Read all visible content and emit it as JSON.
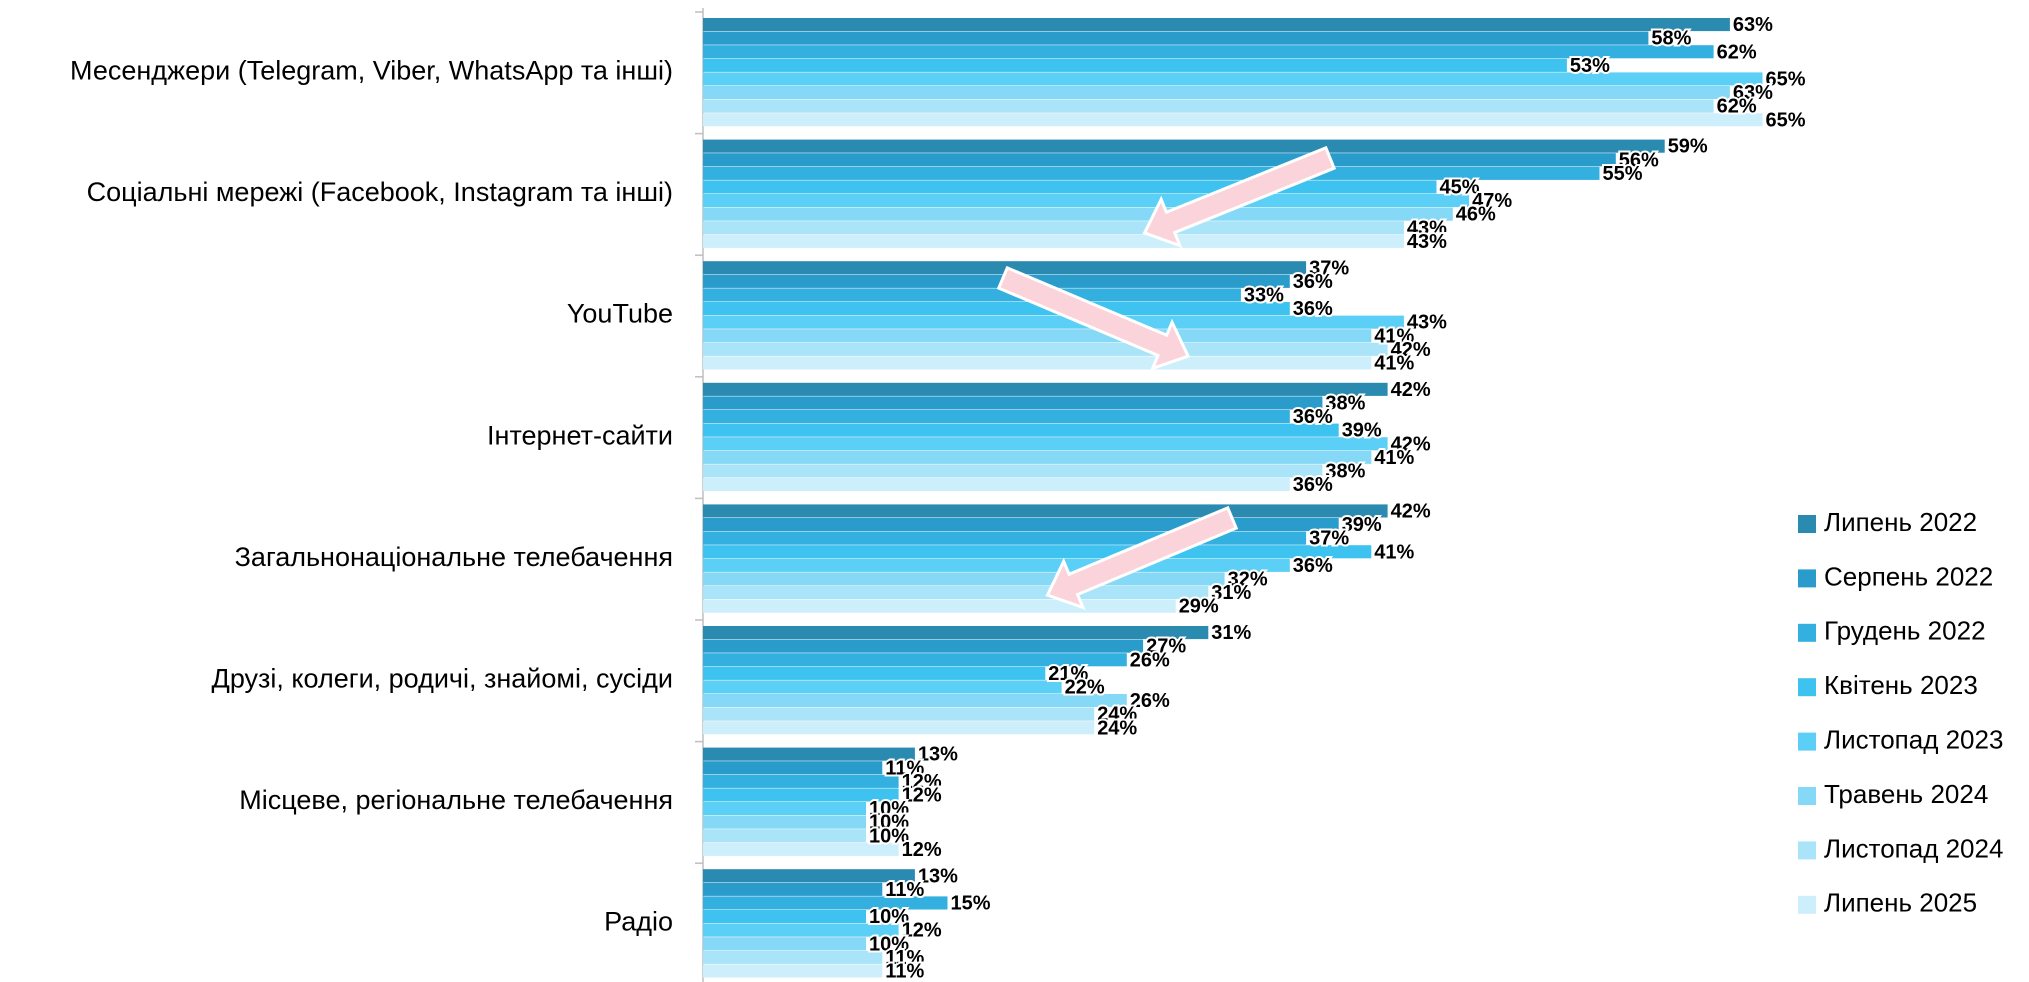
{
  "chart_data": {
    "type": "bar",
    "orientation": "horizontal",
    "categories": [
      "Месенджери (Telegram, Viber, WhatsApp та інші)",
      "Соціальні мережі (Facebook, Instagram та інші)",
      "YouTube",
      "Інтернет-сайти",
      "Загальнонаціональне телебачення",
      "Друзі, колеги, родичі, знайомі, сусіди",
      "Місцеве, регіональне телебачення",
      "Радіо"
    ],
    "xlim": [
      0,
      80
    ],
    "series": [
      {
        "name": "Липень 2022",
        "color": "#2b8ab0",
        "values": [
          63,
          59,
          37,
          42,
          42,
          31,
          13,
          13
        ],
        "value_labels": [
          "63%",
          "59%",
          "37%",
          "42%",
          "42%",
          "31%",
          "13%",
          "13%"
        ]
      },
      {
        "name": "Серпень 2022",
        "color": "#2a9ccc",
        "values": [
          58,
          56,
          36,
          38,
          39,
          27,
          11,
          11
        ],
        "value_labels": [
          "58%",
          "56%",
          "36%",
          "38%",
          "39%",
          "27%",
          "11%",
          "11%"
        ]
      },
      {
        "name": "Грудень 2022",
        "color": "#33afe0",
        "values": [
          62,
          55,
          33,
          36,
          37,
          26,
          12,
          15
        ],
        "value_labels": [
          "62%",
          "55%",
          "33%",
          "36%",
          "37%",
          "26%",
          "12%",
          "15%"
        ]
      },
      {
        "name": "Квітень 2023",
        "color": "#3ec3f0",
        "values": [
          53,
          45,
          36,
          39,
          41,
          21,
          12,
          10
        ],
        "value_labels": [
          "53%",
          "45%",
          "36%",
          "39%",
          "41%",
          "21%",
          "12%",
          "10%"
        ]
      },
      {
        "name": "Листопад 2023",
        "color": "#5bcff5",
        "values": [
          65,
          47,
          43,
          42,
          36,
          22,
          10,
          12
        ],
        "value_labels": [
          "65%",
          "47%",
          "43%",
          "42%",
          "36%",
          "22%",
          "10%",
          "12%"
        ]
      },
      {
        "name": "Травень 2024",
        "color": "#86d9f6",
        "values": [
          63,
          46,
          41,
          41,
          32,
          26,
          10,
          10
        ],
        "value_labels": [
          "63%",
          "46%",
          "41%",
          "41%",
          "32%",
          "26%",
          "10%",
          "10%"
        ]
      },
      {
        "name": "Листопад 2024",
        "color": "#aae4f8",
        "values": [
          62,
          43,
          42,
          38,
          31,
          24,
          10,
          11
        ],
        "value_labels": [
          "62%",
          "43%",
          "42%",
          "38%",
          "31%",
          "24%",
          "10%",
          "11%"
        ]
      },
      {
        "name": "Липень 2025",
        "color": "#cdeefb",
        "values": [
          65,
          43,
          41,
          36,
          29,
          24,
          12,
          11
        ],
        "value_labels": [
          "65%",
          "43%",
          "41%",
          "36%",
          "29%",
          "24%",
          "12%",
          "11%"
        ]
      }
    ],
    "legend": "right"
  }
}
